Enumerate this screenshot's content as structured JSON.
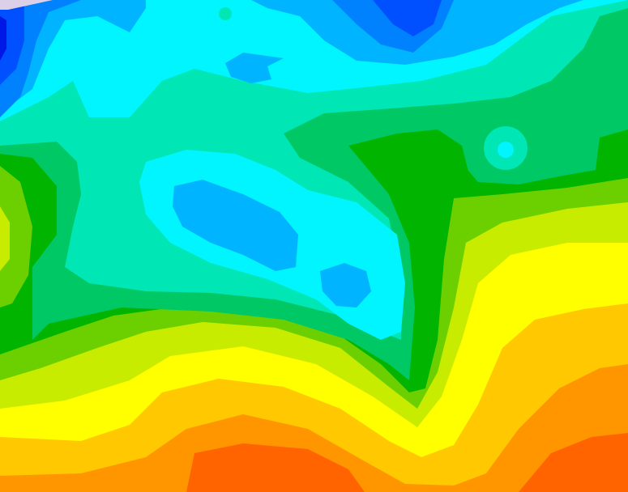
{
  "map": {
    "type": "filled-contour",
    "palette": [
      "#0018e6",
      "#0050ff",
      "#0082ff",
      "#00b4ff",
      "#00f5ff",
      "#00e6b4",
      "#00c864",
      "#00b400",
      "#6cd000",
      "#c8ec00",
      "#ffff00",
      "#ffc800",
      "#ff9600",
      "#ff6400",
      "#dcd0e8"
    ]
  }
}
